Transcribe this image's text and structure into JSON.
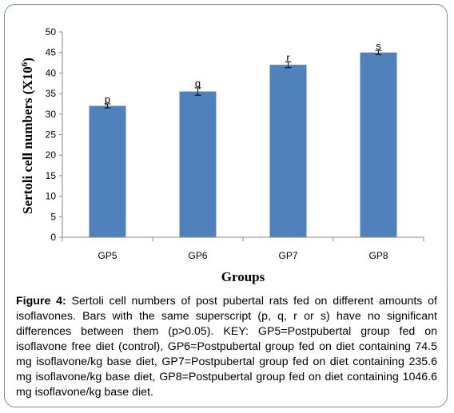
{
  "figure": {
    "label": "Figure 4:",
    "caption": " Sertoli cell numbers of post pubertal rats fed on different amounts of isoflavones. Bars with the same superscript (p, q, r or s) have no significant differences between them (p>0.05). KEY: GP5=Postpubertal group fed on isoflavone free diet (control), GP6=Postpubertal group fed on diet containing 74.5 mg isoflavone/kg base diet, GP7=Postpubertal group fed on diet containing 235.6 mg isoflavone/kg base diet, GP8=Postpubertal group fed on diet containing 1046.6 mg isoflavone/kg base diet."
  },
  "chart_data": {
    "type": "bar",
    "categories": [
      "GP5",
      "GP6",
      "GP7",
      "GP8"
    ],
    "values": [
      32,
      35.5,
      42,
      45
    ],
    "errors": [
      0.5,
      0.9,
      0.7,
      0.5
    ],
    "superscripts": [
      "p",
      "q",
      "r",
      "s"
    ],
    "xlabel": "Groups",
    "ylabel_main": "Sertoli cell numbers (X10",
    "ylabel_exp": "6",
    "ylabel_close": ")",
    "ylim": [
      0,
      50
    ],
    "yticks": [
      0,
      5,
      10,
      15,
      20,
      25,
      30,
      35,
      40,
      45,
      50
    ],
    "bar_color": "#4f81bd",
    "grid": false,
    "legend": "none"
  }
}
